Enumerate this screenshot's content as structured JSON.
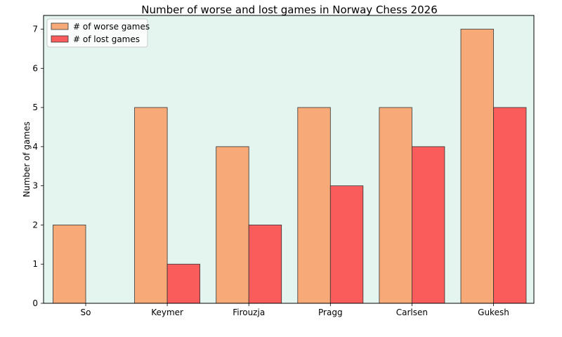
{
  "chart_data": {
    "type": "bar",
    "title": "Number of worse and lost games in Norway Chess 2026",
    "xlabel": "",
    "ylabel": "Number of games",
    "categories": [
      "So",
      "Keymer",
      "Firouzja",
      "Pragg",
      "Carlsen",
      "Gukesh"
    ],
    "series": [
      {
        "name": "# of worse games",
        "values": [
          2,
          5,
          4,
          5,
          5,
          7
        ],
        "color": "#f7a978"
      },
      {
        "name": "# of lost games",
        "values": [
          0,
          1,
          2,
          3,
          4,
          5
        ],
        "color": "#fa5c5c"
      }
    ],
    "ylim": [
      0,
      7.35
    ],
    "yticks": [
      0,
      1,
      2,
      3,
      4,
      5,
      6,
      7
    ],
    "grid": false,
    "legend": "top-left",
    "background_color": "#e4f5ef",
    "edge_color": "#333333"
  }
}
